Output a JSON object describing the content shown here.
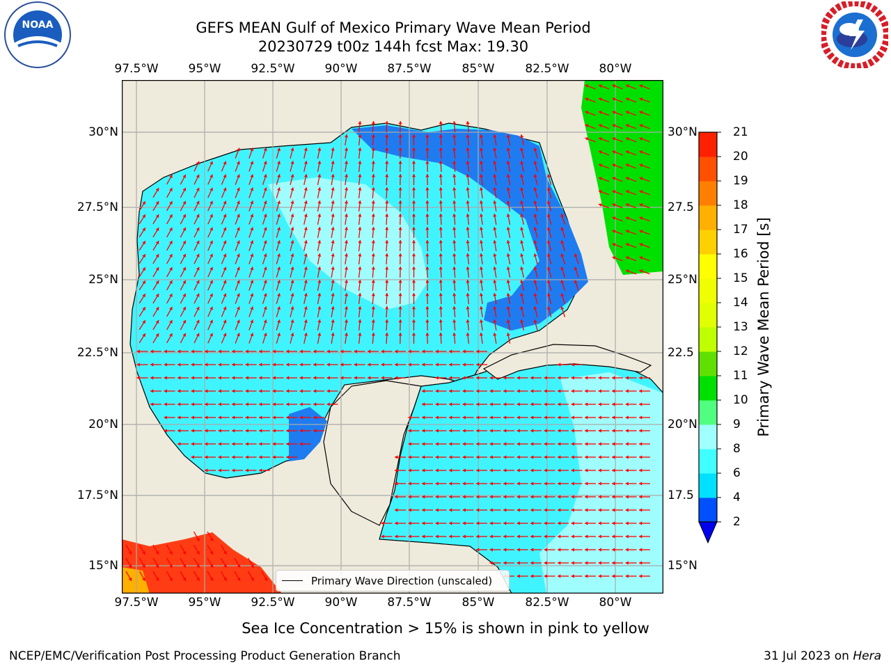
{
  "title": {
    "line1": "GEFS MEAN Gulf of Mexico Primary Wave Mean Period",
    "line2": "20230729 t00z 144h fcst   Max: 19.30"
  },
  "axes": {
    "lon_ticks": [
      "97.5°W",
      "95°W",
      "92.5°W",
      "90°W",
      "87.5°W",
      "85°W",
      "82.5°W",
      "80°W"
    ],
    "lat_ticks_left": [
      "30°N",
      "27.5°N",
      "25°N",
      "22.5°N",
      "20°N",
      "17.5°N",
      "15°N"
    ],
    "lat_ticks_right": [
      "30°N",
      "27.5",
      "25°N",
      "22.5",
      "20°N",
      "17.5",
      "15°N"
    ]
  },
  "legend": {
    "label": "Primary Wave Direction (unscaled)"
  },
  "colorbar": {
    "label": "Primary Wave Mean Period [s]",
    "ticks": [
      "2",
      "4",
      "6",
      "8",
      "9",
      "10",
      "11",
      "12",
      "13",
      "14",
      "15",
      "16",
      "17",
      "18",
      "19",
      "20",
      "21"
    ],
    "colors": [
      "#0050ff",
      "#00e0ff",
      "#40ffff",
      "#a0ffff",
      "#50ff80",
      "#00e000",
      "#60e000",
      "#c0ff00",
      "#e0ff00",
      "#f0ff00",
      "#ffff00",
      "#ffd000",
      "#ffb000",
      "#ff8000",
      "#ff5000",
      "#ff2000"
    ],
    "extend_color": "#0000ee"
  },
  "footnote": "Sea Ice Concentration > 15% is shown in pink to yellow",
  "credit": {
    "left": "NCEP/EMC/Verification Post Processing Product Generation Branch",
    "right_date": "31 Jul 2023 on ",
    "right_host": "Hera"
  },
  "logos": {
    "left": "noaa-logo",
    "right": "nws-logo",
    "left_text": "NOAA"
  }
}
